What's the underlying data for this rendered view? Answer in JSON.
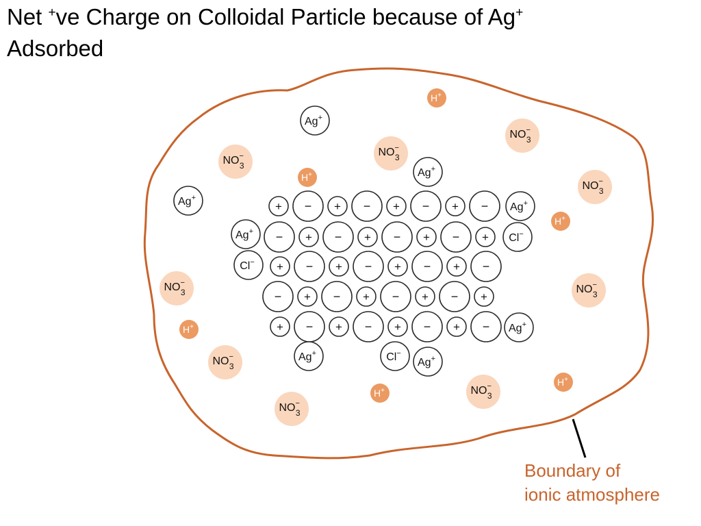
{
  "title": {
    "part1": "Net ",
    "sup1": "+",
    "part2": "ve Charge on Colloidal Particle because of Ag",
    "sup2": "+",
    "line2": "Adsorbed"
  },
  "boundary_label": {
    "line1": "Boundary of",
    "line2": "ionic atmosphere"
  },
  "colors": {
    "boundary": "#c8642c",
    "nitrate_fill": "#fad6bc",
    "hydrogen_fill": "#eb9a62",
    "ion_stroke": "#2b2b2b"
  },
  "ions": {
    "ag": {
      "symbol": "Ag",
      "charge": "+"
    },
    "cl": {
      "symbol": "Cl",
      "charge": "−"
    },
    "no3": {
      "symbol": "NO",
      "sub": "3",
      "charge": "−"
    },
    "h": {
      "symbol": "H",
      "charge": "+"
    },
    "lattice_plus": "+",
    "lattice_minus": "−"
  },
  "lattice": [
    "+-+-+-+-",
    "-+-+-+-+",
    "+-+-+-+-",
    "-+-+-+-+",
    "+-+-+-+-"
  ],
  "adsorbed_ions": [
    "ag",
    "ag",
    "ag",
    "ag",
    "ag",
    "ag",
    "ag",
    "ag",
    "cl",
    "cl",
    "cl"
  ],
  "atmosphere_ions": [
    "no3",
    "no3",
    "no3",
    "no3",
    "no3",
    "no3",
    "no3",
    "no3",
    "no3",
    "h",
    "h",
    "h",
    "h",
    "h",
    "h"
  ]
}
